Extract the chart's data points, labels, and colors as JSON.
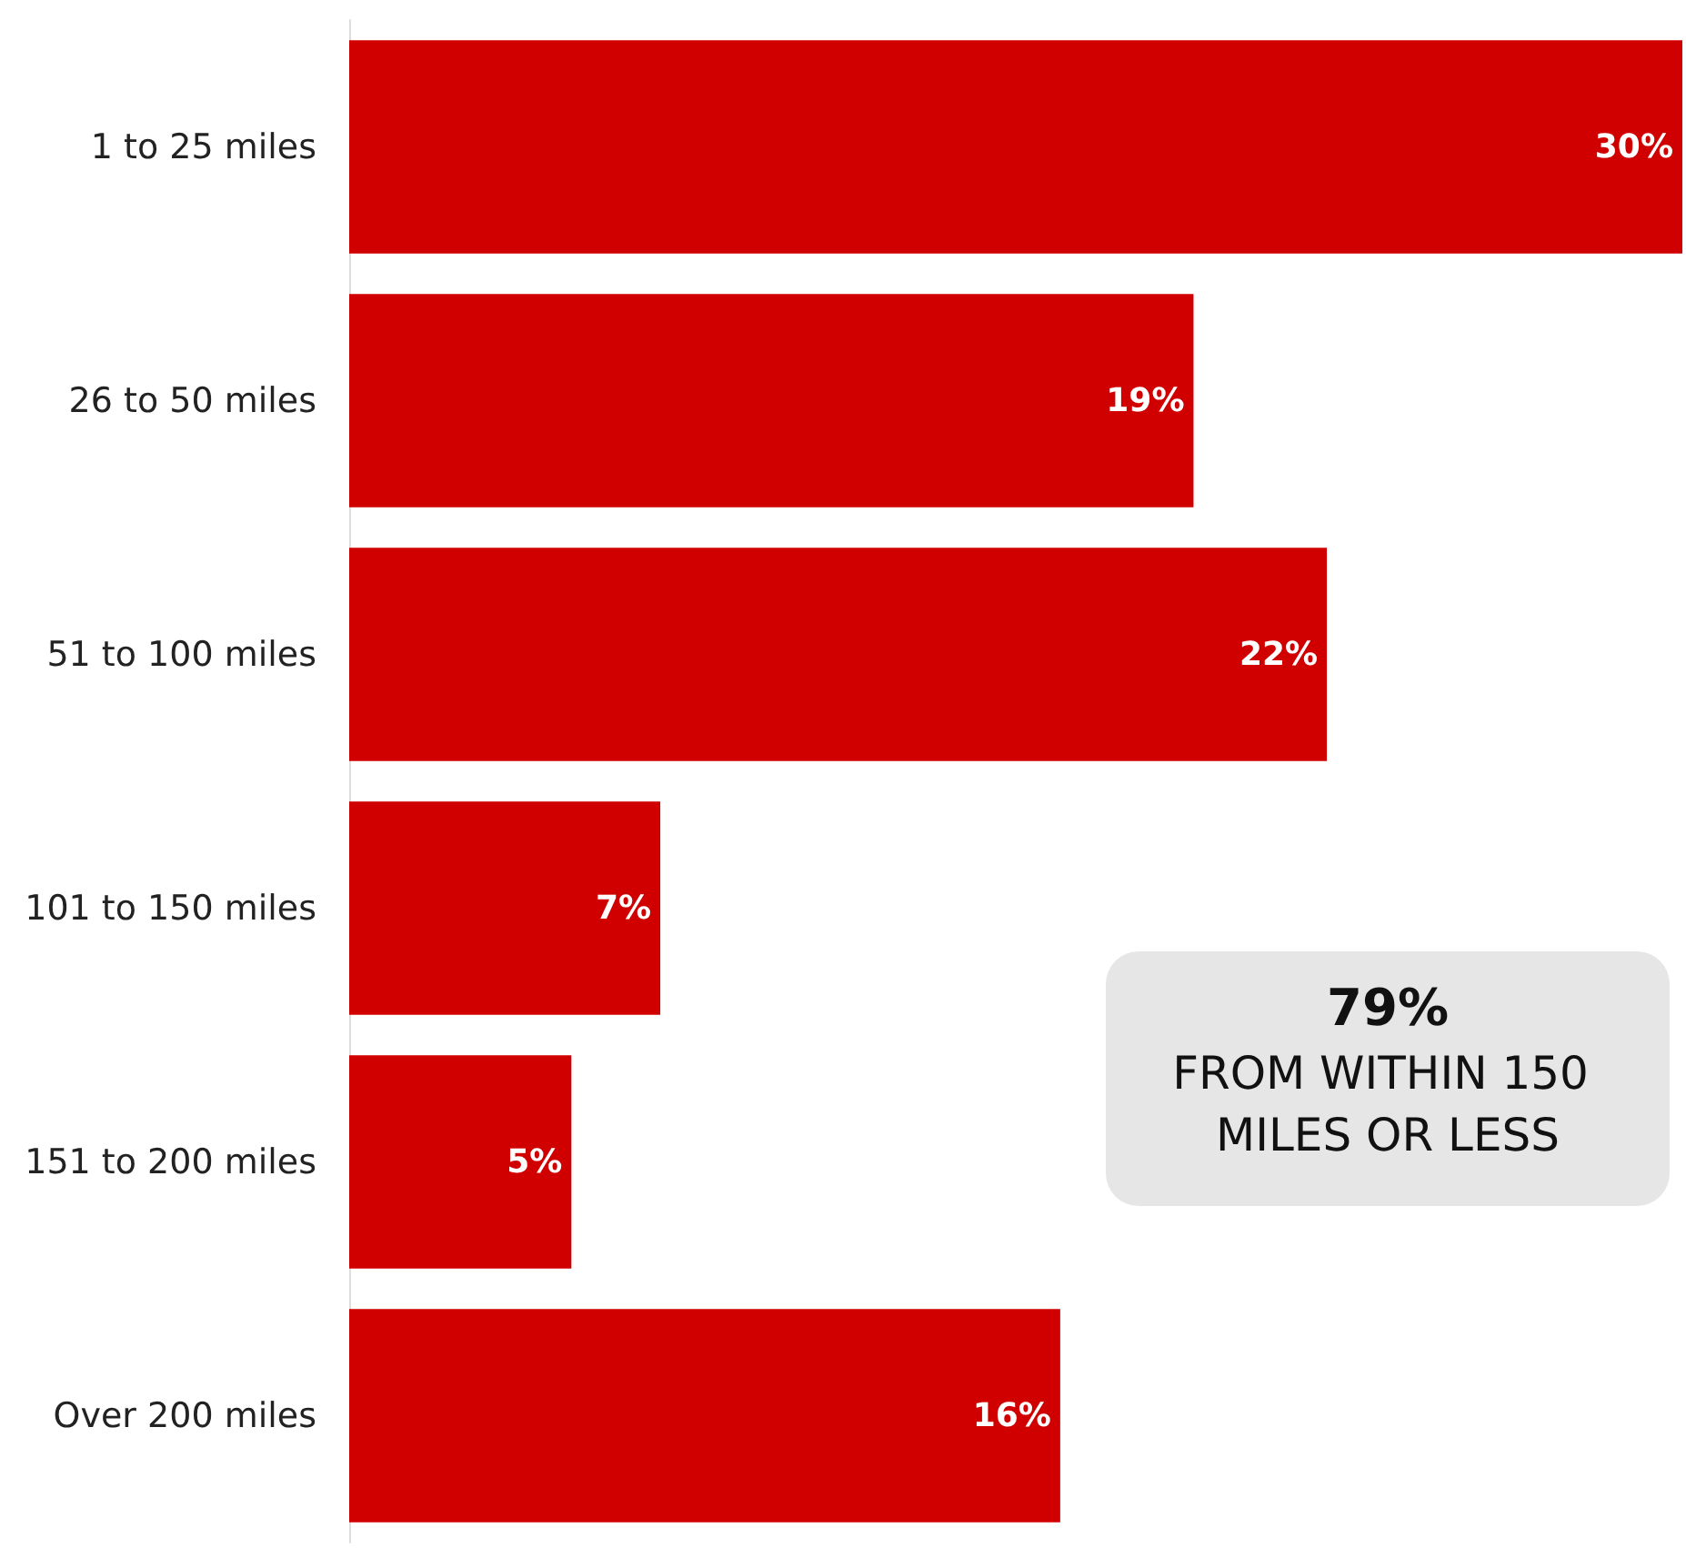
{
  "chart_data": {
    "type": "bar",
    "orientation": "horizontal",
    "categories": [
      "1 to 25 miles",
      "26 to 50 miles",
      "51 to 100 miles",
      "101 to 150 miles",
      "151 to 200 miles",
      "Over 200 miles"
    ],
    "values": [
      30,
      19,
      22,
      7,
      5,
      16
    ],
    "value_labels": [
      "30%",
      "19%",
      "22%",
      "7%",
      "5%",
      "16%"
    ],
    "color": "#d10000",
    "annotations": [
      "79%",
      "FROM WITHIN 150 MILES OR LESS"
    ]
  }
}
